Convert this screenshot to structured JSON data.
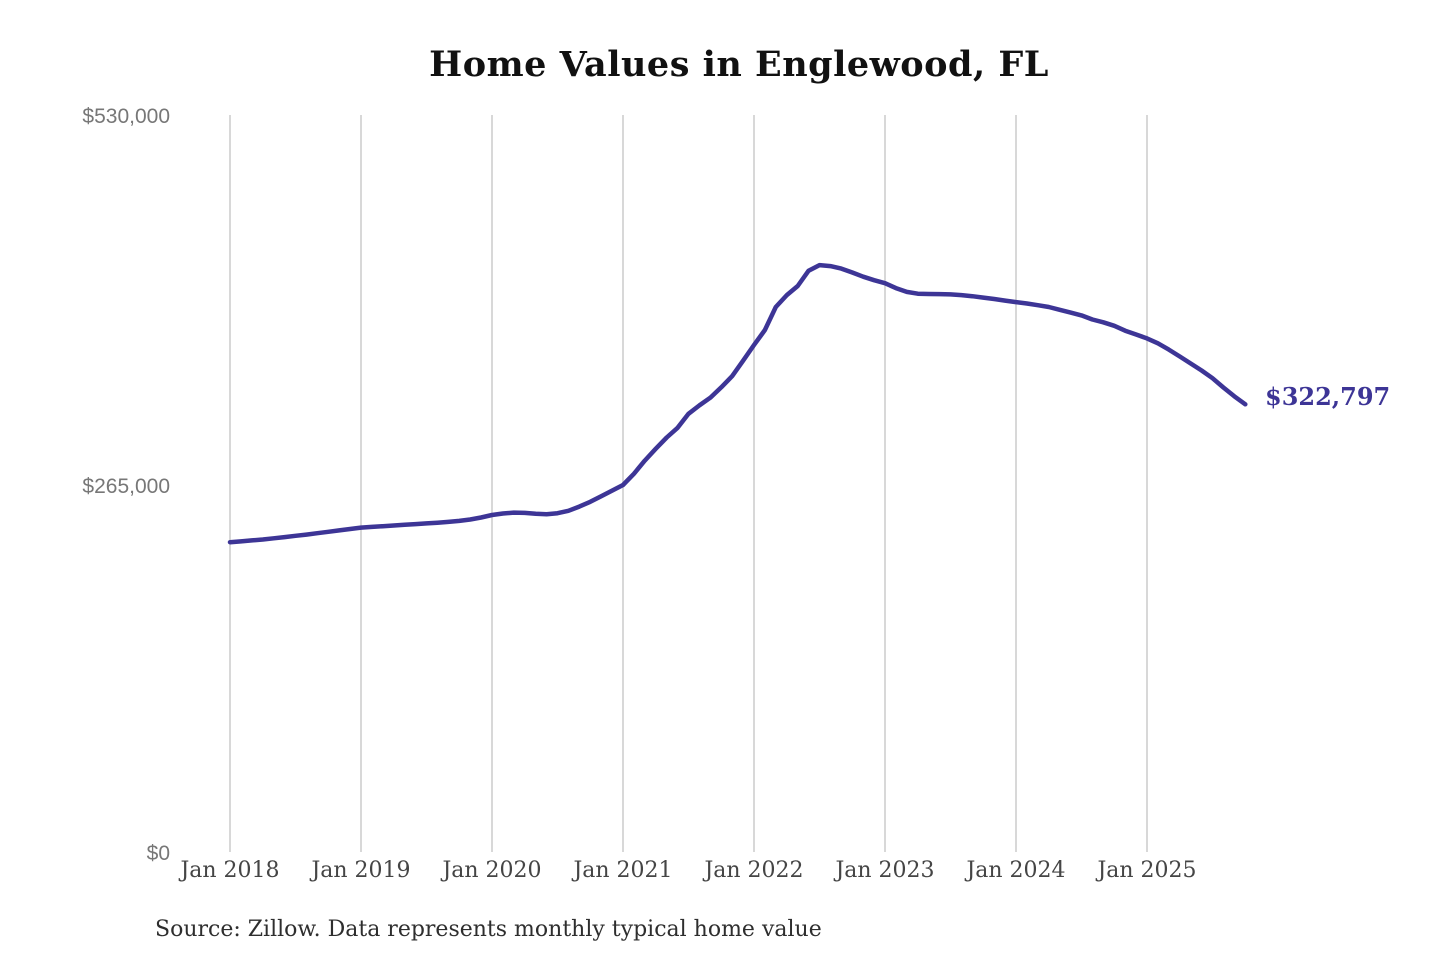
{
  "page": {
    "background_color": "#ffffff"
  },
  "header": {
    "title": "Home Values in Englewood, FL"
  },
  "footer": {
    "source_note": "Source: Zillow. Data represents monthly typical home value"
  },
  "chart_data": {
    "type": "line",
    "title": "Home Values in Englewood, FL",
    "xlabel": "",
    "ylabel": "",
    "ylim": [
      0,
      530000
    ],
    "grid": "vertical-only",
    "legend": "none",
    "line_color": "#3d3596",
    "gridline_color": "#cbcbcb",
    "end_label": "$322,797",
    "end_value": 322797,
    "y_tick_values": [
      0,
      265000,
      530000
    ],
    "y_tick_labels": [
      "$0",
      "$265,000",
      "$530,000"
    ],
    "x_tick_labels": [
      "Jan 2018",
      "Jan 2019",
      "Jan 2020",
      "Jan 2021",
      "Jan 2022",
      "Jan 2023",
      "Jan 2024",
      "Jan 2025"
    ],
    "series": [
      {
        "name": "Monthly typical home value",
        "color": "#3d3596",
        "x": [
          "2018-01",
          "2018-02",
          "2018-03",
          "2018-04",
          "2018-05",
          "2018-06",
          "2018-07",
          "2018-08",
          "2018-09",
          "2018-10",
          "2018-11",
          "2018-12",
          "2019-01",
          "2019-02",
          "2019-03",
          "2019-04",
          "2019-05",
          "2019-06",
          "2019-07",
          "2019-08",
          "2019-09",
          "2019-10",
          "2019-11",
          "2019-12",
          "2020-01",
          "2020-02",
          "2020-03",
          "2020-04",
          "2020-05",
          "2020-06",
          "2020-07",
          "2020-08",
          "2020-09",
          "2020-10",
          "2020-11",
          "2020-12",
          "2021-01",
          "2021-02",
          "2021-03",
          "2021-04",
          "2021-05",
          "2021-06",
          "2021-07",
          "2021-08",
          "2021-09",
          "2021-10",
          "2021-11",
          "2021-12",
          "2022-01",
          "2022-02",
          "2022-03",
          "2022-04",
          "2022-05",
          "2022-06",
          "2022-07",
          "2022-08",
          "2022-09",
          "2022-10",
          "2022-11",
          "2022-12",
          "2023-01",
          "2023-02",
          "2023-03",
          "2023-04",
          "2023-05",
          "2023-06",
          "2023-07",
          "2023-08",
          "2023-09",
          "2023-10",
          "2023-11",
          "2023-12",
          "2024-01",
          "2024-02",
          "2024-03",
          "2024-04",
          "2024-05",
          "2024-06",
          "2024-07",
          "2024-08",
          "2024-09",
          "2024-10",
          "2024-11",
          "2024-12",
          "2025-01",
          "2025-02",
          "2025-03",
          "2025-04",
          "2025-05",
          "2025-06",
          "2025-07",
          "2025-08",
          "2025-09",
          "2025-10"
        ],
        "values": [
          224000,
          224600,
          225300,
          226000,
          226800,
          227700,
          228600,
          229500,
          230500,
          231500,
          232500,
          233500,
          234500,
          235000,
          235500,
          236000,
          236500,
          237000,
          237500,
          238000,
          238600,
          239300,
          240300,
          241700,
          243500,
          244600,
          245200,
          245000,
          244400,
          244100,
          244800,
          246500,
          249500,
          253000,
          257000,
          261000,
          265000,
          273000,
          282500,
          291000,
          299000,
          306000,
          316000,
          322000,
          327500,
          335000,
          343000,
          354000,
          365300,
          376000,
          392500,
          401000,
          407500,
          418500,
          422500,
          421800,
          420000,
          417200,
          414200,
          411700,
          409500,
          406000,
          403300,
          402000,
          401800,
          401700,
          401500,
          401000,
          400200,
          399200,
          398200,
          397100,
          396000,
          395000,
          393800,
          392500,
          390500,
          388500,
          386500,
          383500,
          381500,
          379000,
          375500,
          372800,
          370000,
          366500,
          362000,
          357000,
          352000,
          347000,
          341500,
          334800,
          328500,
          322797
        ]
      }
    ],
    "source_note": "Source: Zillow. Data represents monthly typical home value"
  }
}
